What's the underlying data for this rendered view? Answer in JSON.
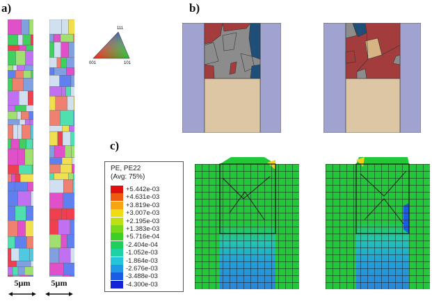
{
  "panels": {
    "a": {
      "label": "a)"
    },
    "b": {
      "label": "b)"
    },
    "c": {
      "label": "c)"
    }
  },
  "ipf_key": {
    "top": "111",
    "bottom_left": "001",
    "bottom_right": "101"
  },
  "scale_bars": [
    {
      "label": "5µm"
    },
    {
      "label": "5µm"
    }
  ],
  "legend": {
    "title_line1": "PE, PE22",
    "title_line2": "(Avg: 75%)",
    "entries": [
      {
        "value": "+5.442e-03",
        "color": "#e01010"
      },
      {
        "value": "+4.631e-03",
        "color": "#ee5a10"
      },
      {
        "value": "+3.819e-03",
        "color": "#f6a414"
      },
      {
        "value": "+3.007e-03",
        "color": "#f0dc14"
      },
      {
        "value": "+2.195e-03",
        "color": "#bce014"
      },
      {
        "value": "+1.383e-03",
        "color": "#7ad81c"
      },
      {
        "value": "+5.716e-04",
        "color": "#3ccf26"
      },
      {
        "value": "-2.404e-04",
        "color": "#1ecf5a"
      },
      {
        "value": "-1.052e-03",
        "color": "#1fd2a6"
      },
      {
        "value": "-1.864e-03",
        "color": "#22c6d8"
      },
      {
        "value": "-2.676e-03",
        "color": "#1f98e6"
      },
      {
        "value": "-3.488e-03",
        "color": "#1a5ce4"
      },
      {
        "value": "-4.300e-03",
        "color": "#1422d6"
      }
    ]
  },
  "colors": {
    "pillar": "#a0a3cf",
    "substrate": "#dcc6a4",
    "grain_red": "#a33c3c",
    "grain_gray": "#8c8c8c",
    "grain_blue": "#1f4e78",
    "grain_tan": "#d8b484",
    "mesh_green": "#22c83a",
    "mesh_lines": "#111111"
  }
}
